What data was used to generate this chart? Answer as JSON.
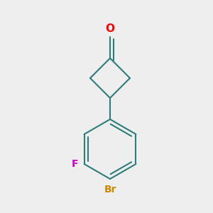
{
  "background_color": "#eeeeee",
  "bond_color": "#2d7d7d",
  "bond_width": 1.5,
  "o_color": "#ff0000",
  "f_color": "#cc00cc",
  "br_color": "#cc8800",
  "o_label": "O",
  "f_label": "F",
  "br_label": "Br",
  "font_size_o": 11,
  "font_size_f": 10,
  "font_size_br": 10,
  "figsize": [
    3.0,
    3.0
  ],
  "dpi": 100
}
